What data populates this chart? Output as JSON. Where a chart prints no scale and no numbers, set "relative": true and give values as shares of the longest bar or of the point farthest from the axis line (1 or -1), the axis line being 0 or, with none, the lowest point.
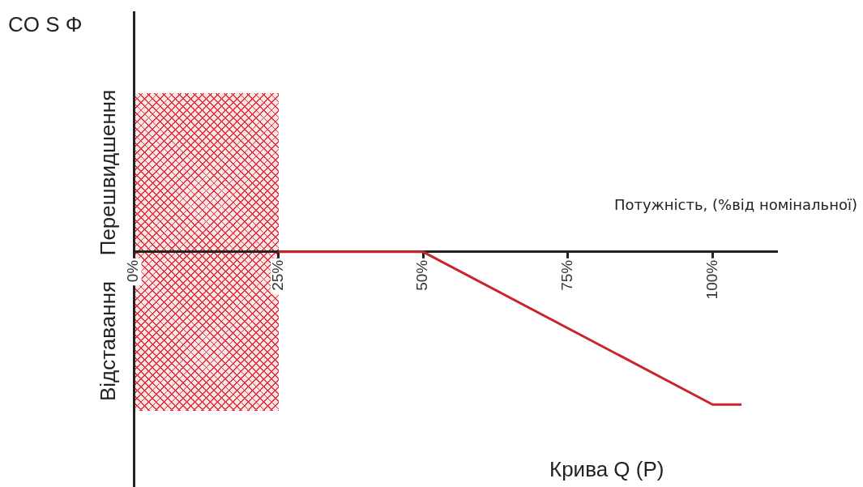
{
  "chart_data": {
    "type": "line",
    "title": "Крива Q (P)",
    "xlabel": "Потужність, (%від номінальної)",
    "annotations": [
      "CO S Φ",
      "Перешвидшення",
      "Відставання"
    ],
    "x": [
      25,
      50,
      100,
      105
    ],
    "values": [
      0,
      0,
      -1,
      -1
    ],
    "color": "#c9252c",
    "relative": true,
    "xlim": [
      0,
      111
    ],
    "xticks": [
      {
        "value": 0,
        "label": "0%"
      },
      {
        "value": 25,
        "label": "25%"
      },
      {
        "value": 50,
        "label": "50%"
      },
      {
        "value": 75,
        "label": "75%"
      },
      {
        "value": 100,
        "label": "100%"
      }
    ],
    "bands": [
      {
        "axis": "x",
        "from": 0,
        "to": 25,
        "color": "#e8343c"
      }
    ],
    "grid": false,
    "legend": false,
    "marker": "none",
    "line_style": "solid"
  }
}
